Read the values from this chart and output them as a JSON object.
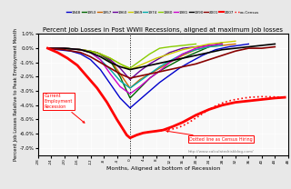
{
  "title": "Percent Job Losses in Post WWII Recessions, aligned at maximum job losses",
  "xlabel": "Months, Aligned at bottom of Recession",
  "ylabel": "Percent Job Losses Relative to Peak Employment Month",
  "url": "http://www.calculatedriskblog.com/",
  "ylim": [
    -7.5,
    1.0
  ],
  "xlim": [
    -28,
    48
  ],
  "yticks": [
    1.0,
    0.0,
    -1.0,
    -2.0,
    -3.0,
    -4.0,
    -5.0,
    -6.0,
    -7.0
  ],
  "ytick_labels": [
    "1.0%",
    "0.0%",
    "-1.0%",
    "-2.0%",
    "-3.0%",
    "-4.0%",
    "-5.0%",
    "-6.0%",
    "-7.0%"
  ],
  "bg_color": "#e8e8e8",
  "annotation1_text": "Current\nEmployment\nRecession",
  "annotation2_text": "Dotted line as Census Hiring",
  "recessions": {
    "1948": {
      "color": "#0000cc",
      "lw": 1.0
    },
    "1953": {
      "color": "#006600",
      "lw": 1.0
    },
    "1957": {
      "color": "#cc6600",
      "lw": 1.0
    },
    "1960": {
      "color": "#660099",
      "lw": 1.0
    },
    "1969": {
      "color": "#cccc00",
      "lw": 1.0
    },
    "1974": {
      "color": "#00aaaa",
      "lw": 1.0
    },
    "1980": {
      "color": "#88cc00",
      "lw": 1.0
    },
    "1981": {
      "color": "#cc00cc",
      "lw": 1.0
    },
    "1990": {
      "color": "#000000",
      "lw": 1.2
    },
    "2001": {
      "color": "#880000",
      "lw": 1.2
    },
    "2007": {
      "color": "#ff0000",
      "lw": 2.0
    },
    "ex-Census": {
      "color": "#ff0000",
      "lw": 1.2,
      "ls": "dotted"
    }
  },
  "curves": {
    "1948": {
      "x": [
        -25,
        -22,
        -18,
        -15,
        -12,
        -9,
        -6,
        -3,
        0,
        3,
        6,
        9,
        12,
        15,
        18,
        22,
        26,
        30,
        36
      ],
      "y": [
        0.0,
        -0.1,
        -0.2,
        -0.4,
        -0.8,
        -1.5,
        -2.5,
        -3.5,
        -4.2,
        -3.6,
        -3.0,
        -2.4,
        -1.9,
        -1.4,
        -1.0,
        -0.5,
        -0.1,
        0.1,
        0.3
      ]
    },
    "1953": {
      "x": [
        -25,
        -20,
        -15,
        -10,
        -6,
        -3,
        0,
        3,
        6,
        9,
        12,
        16,
        20,
        24,
        28
      ],
      "y": [
        0.0,
        0.0,
        -0.1,
        -0.3,
        -0.9,
        -2.0,
        -3.5,
        -2.8,
        -2.1,
        -1.6,
        -1.2,
        -0.7,
        -0.3,
        0.1,
        0.4
      ]
    },
    "1957": {
      "x": [
        -25,
        -20,
        -15,
        -10,
        -6,
        -3,
        0,
        3,
        6,
        9,
        12,
        16,
        20,
        24,
        28,
        32
      ],
      "y": [
        0.0,
        0.0,
        -0.1,
        -0.3,
        -0.8,
        -1.8,
        -2.8,
        -2.2,
        -1.8,
        -1.4,
        -1.0,
        -0.5,
        -0.1,
        0.1,
        0.2,
        0.3
      ]
    },
    "1960": {
      "x": [
        -25,
        -20,
        -15,
        -12,
        -9,
        -6,
        -3,
        0,
        3,
        6,
        9,
        12,
        16,
        20,
        24
      ],
      "y": [
        0.0,
        0.0,
        -0.1,
        -0.2,
        -0.4,
        -0.8,
        -1.4,
        -2.2,
        -1.6,
        -1.1,
        -0.7,
        -0.3,
        0.0,
        0.1,
        0.2
      ]
    },
    "1969": {
      "x": [
        -25,
        -20,
        -15,
        -12,
        -9,
        -6,
        -3,
        0,
        4,
        8,
        12,
        16,
        20,
        24,
        28,
        32
      ],
      "y": [
        0.0,
        0.0,
        -0.1,
        -0.2,
        -0.4,
        -0.7,
        -1.1,
        -1.5,
        -1.1,
        -0.7,
        -0.4,
        -0.1,
        0.1,
        0.3,
        0.4,
        0.5
      ]
    },
    "1974": {
      "x": [
        -25,
        -20,
        -15,
        -12,
        -9,
        -6,
        -3,
        0,
        3,
        6,
        9,
        12,
        16,
        20,
        24,
        28
      ],
      "y": [
        0.0,
        0.0,
        -0.1,
        -0.3,
        -0.8,
        -1.5,
        -2.3,
        -2.8,
        -2.3,
        -1.8,
        -1.3,
        -0.9,
        -0.4,
        -0.1,
        0.1,
        0.2
      ]
    },
    "1980": {
      "x": [
        -25,
        -20,
        -15,
        -12,
        -9,
        -6,
        -3,
        0,
        3,
        6,
        9,
        12,
        16,
        20
      ],
      "y": [
        0.0,
        0.0,
        -0.1,
        -0.2,
        -0.4,
        -0.7,
        -1.1,
        -1.4,
        -0.9,
        -0.4,
        0.0,
        0.1,
        0.2,
        0.3
      ]
    },
    "1981": {
      "x": [
        -25,
        -20,
        -15,
        -12,
        -9,
        -6,
        -3,
        0,
        3,
        6,
        9,
        12,
        16,
        20,
        24,
        28
      ],
      "y": [
        0.0,
        0.0,
        -0.1,
        -0.3,
        -0.8,
        -1.8,
        -2.7,
        -3.2,
        -2.7,
        -2.1,
        -1.6,
        -1.0,
        -0.4,
        0.0,
        0.2,
        0.3
      ]
    },
    "1990": {
      "x": [
        -25,
        -20,
        -15,
        -12,
        -9,
        -6,
        -3,
        0,
        4,
        8,
        12,
        16,
        20,
        24,
        28,
        32,
        36,
        40,
        44
      ],
      "y": [
        0.0,
        0.0,
        -0.1,
        -0.3,
        -0.6,
        -1.0,
        -1.3,
        -1.5,
        -1.3,
        -1.1,
        -0.9,
        -0.7,
        -0.5,
        -0.3,
        -0.1,
        0.0,
        0.1,
        0.2,
        0.3
      ]
    },
    "2001": {
      "x": [
        -25,
        -20,
        -15,
        -12,
        -9,
        -6,
        -3,
        0,
        4,
        8,
        12,
        16,
        20,
        24,
        28,
        32,
        36,
        40,
        44
      ],
      "y": [
        0.0,
        -0.1,
        -0.3,
        -0.6,
        -1.0,
        -1.4,
        -1.8,
        -2.1,
        -1.9,
        -1.7,
        -1.5,
        -1.3,
        -1.1,
        -0.8,
        -0.5,
        -0.2,
        0.0,
        0.0,
        0.1
      ]
    },
    "2007": {
      "x": [
        -25,
        -22,
        -19,
        -16,
        -13,
        -10,
        -7,
        -4,
        -1,
        0,
        2,
        4,
        6,
        8,
        10,
        13,
        16,
        20,
        24,
        28,
        32,
        36,
        40,
        44,
        47
      ],
      "y": [
        0.0,
        -0.3,
        -0.7,
        -1.2,
        -2.0,
        -2.8,
        -3.8,
        -5.0,
        -6.1,
        -6.3,
        -6.1,
        -5.95,
        -5.88,
        -5.82,
        -5.75,
        -5.5,
        -5.2,
        -4.7,
        -4.3,
        -4.0,
        -3.8,
        -3.7,
        -3.6,
        -3.5,
        -3.45
      ]
    },
    "ex-Census": {
      "x": [
        8,
        10,
        12,
        14,
        16,
        18,
        20,
        22,
        24,
        26,
        28,
        30,
        32,
        36,
        40,
        44,
        47
      ],
      "y": [
        -5.82,
        -5.78,
        -5.72,
        -5.62,
        -5.45,
        -5.2,
        -4.9,
        -4.6,
        -4.3,
        -4.05,
        -3.85,
        -3.7,
        -3.6,
        -3.45,
        -3.4,
        -3.42,
        -3.45
      ]
    }
  }
}
